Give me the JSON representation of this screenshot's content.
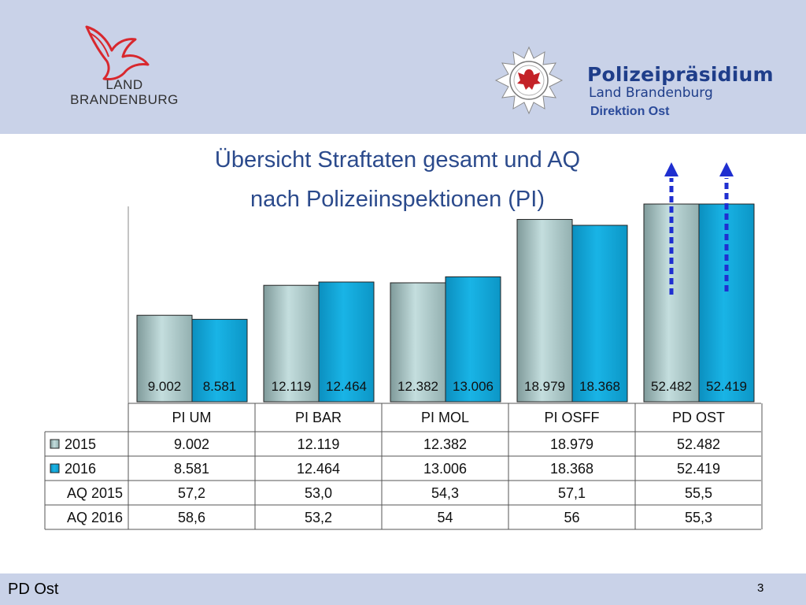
{
  "header": {
    "brand_line1": "LAND",
    "brand_line2": "BRANDENBURG",
    "police_title": "Polizeipräsidium",
    "police_subtitle": "Land Brandenburg",
    "police_division": "Direktion Ost"
  },
  "title": {
    "line1": "Übersicht Straftaten gesamt und AQ",
    "line2": "nach Polizeiinspektionen (PI)"
  },
  "colors": {
    "header_bg": "#c9d2e8",
    "title_text": "#2b4a8c",
    "series_2015": "#b7d3d3",
    "series_2016": "#10a6d8",
    "arrow": "#1f2fd0"
  },
  "chart_data": {
    "type": "bar",
    "categories": [
      "PI UM",
      "PI BAR",
      "PI MOL",
      "PI OSFF",
      "PD OST"
    ],
    "series": [
      {
        "name": "2015",
        "values": [
          9002,
          12119,
          12382,
          18979,
          52482
        ],
        "labels": [
          "9.002",
          "12.119",
          "12.382",
          "18.979",
          "52.482"
        ]
      },
      {
        "name": "2016",
        "values": [
          8581,
          12464,
          13006,
          18368,
          52419
        ],
        "labels": [
          "8.581",
          "12.464",
          "13.006",
          "18.368",
          "52.419"
        ]
      }
    ],
    "axis_break_category": "PD OST",
    "table": {
      "rows": [
        {
          "label": "2015",
          "values": [
            "9.002",
            "12.119",
            "12.382",
            "18.979",
            "52.482"
          ]
        },
        {
          "label": "2016",
          "values": [
            "8.581",
            "12.464",
            "13.006",
            "18.368",
            "52.419"
          ]
        },
        {
          "label": "AQ 2015",
          "values": [
            "57,2",
            "53,0",
            "54,3",
            "57,1",
            "55,5"
          ]
        },
        {
          "label": "AQ 2016",
          "values": [
            "58,6",
            "53,2",
            "54",
            "56",
            "55,3"
          ]
        }
      ]
    }
  },
  "footer": {
    "left": "PD Ost",
    "page_number": "3"
  }
}
